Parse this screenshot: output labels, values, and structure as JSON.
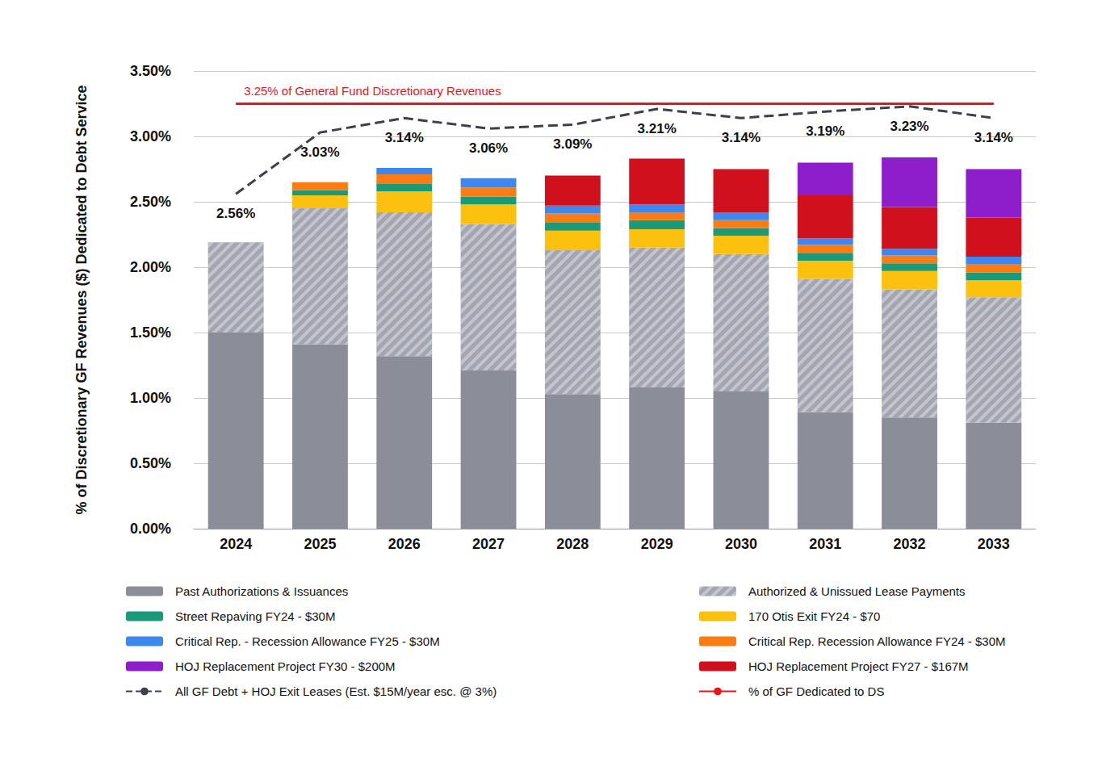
{
  "chart_data": {
    "type": "bar",
    "stacked": true,
    "grid": true,
    "y_label": "% of Discretionary GF Revenues ($) Dedicated to Debt Service",
    "annotation": "3.25% of General Fund Discretionary Revenues",
    "categories": [
      "2024",
      "2025",
      "2026",
      "2027",
      "2028",
      "2029",
      "2030",
      "2031",
      "2032",
      "2033"
    ],
    "ylim": [
      0,
      3.5
    ],
    "yticks": [
      {
        "value": 0,
        "label": "0.00%"
      },
      {
        "value": 0.5,
        "label": "0.50%"
      },
      {
        "value": 1,
        "label": "1.00%"
      },
      {
        "value": 1.5,
        "label": "1.50%"
      },
      {
        "value": 2,
        "label": "2.00%"
      },
      {
        "value": 2.5,
        "label": "2.50%"
      },
      {
        "value": 3,
        "label": "3.00%"
      },
      {
        "value": 3.5,
        "label": "3.50%"
      }
    ],
    "series": [
      {
        "name": "Past Authorizations & Issuances",
        "type": "bar",
        "color": "#8b8d99",
        "values": [
          1.5,
          1.41,
          1.32,
          1.21,
          1.03,
          1.08,
          1.05,
          0.89,
          0.85,
          0.81
        ]
      },
      {
        "name": "Authorized & Unissued Lease Payments",
        "type": "bar",
        "color": "#a3a5b0",
        "values": [
          0.69,
          1.04,
          1.1,
          1.12,
          1.1,
          1.07,
          1.05,
          1.02,
          0.98,
          0.96
        ]
      },
      {
        "name": "170 Otis Exit FY24 - $70",
        "type": "bar",
        "color": "#fcc10e",
        "values": [
          null,
          0.1,
          0.16,
          0.15,
          0.15,
          0.14,
          0.14,
          0.14,
          0.14,
          0.13
        ]
      },
      {
        "name": "Street Repaving FY24 - $30M",
        "type": "bar",
        "color": "#1a9a78",
        "values": [
          null,
          0.04,
          0.06,
          0.06,
          0.06,
          0.07,
          0.06,
          0.06,
          0.06,
          0.06
        ]
      },
      {
        "name": "Critical Rep. Recession Allowance FY24 - $30M",
        "type": "bar",
        "color": "#fb7c12",
        "values": [
          null,
          0.06,
          0.07,
          0.07,
          0.07,
          0.06,
          0.06,
          0.06,
          0.06,
          0.06
        ]
      },
      {
        "name": "Critical Rep. - Recession Allowance FY25 - $30M",
        "type": "bar",
        "color": "#3d87ee",
        "values": [
          null,
          null,
          0.05,
          0.07,
          0.06,
          0.06,
          0.06,
          0.05,
          0.05,
          0.06
        ]
      },
      {
        "name": "HOJ Replacement Project FY27 - $167M",
        "type": "bar",
        "color": "#d0111d",
        "values": [
          null,
          null,
          null,
          null,
          0.23,
          0.35,
          0.33,
          0.33,
          0.32,
          0.3
        ]
      },
      {
        "name": "HOJ Replacement Project FY30 - $200M",
        "type": "bar",
        "color": "#8e1ecb",
        "values": [
          null,
          null,
          null,
          null,
          null,
          null,
          null,
          0.25,
          0.38,
          0.37
        ]
      },
      {
        "name": "All GF Debt + HOJ Exit Leases (Est. $15M/year esc. @ 3%)",
        "type": "line",
        "color": "#3d3f4a",
        "line_style": "dashed",
        "data_labels": true,
        "values": [
          2.56,
          3.03,
          3.14,
          3.06,
          3.09,
          3.21,
          3.14,
          3.19,
          3.23,
          3.14
        ],
        "value_labels": [
          "2.56%",
          "3.03%",
          "3.14%",
          "3.06%",
          "3.09%",
          "3.21%",
          "3.14%",
          "3.19%",
          "3.23%",
          "3.14%"
        ]
      },
      {
        "name": "% of GF Dedicated to DS",
        "type": "line",
        "color": "#e8141c",
        "line_style": "solid",
        "values": [
          3.25,
          3.25,
          3.25,
          3.25,
          3.25,
          3.25,
          3.25,
          3.25,
          3.25,
          3.25
        ]
      }
    ]
  }
}
